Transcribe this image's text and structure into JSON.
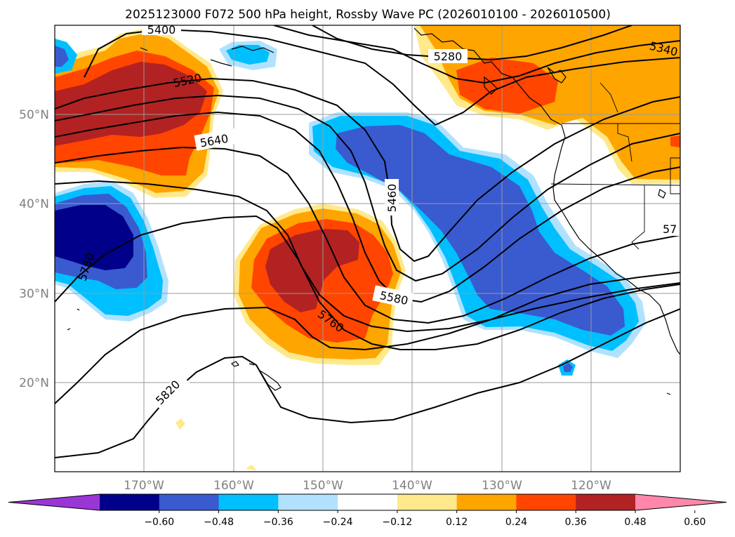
{
  "title": "2025123000 F072 500 hPa height, Rossby Wave PC (2026010100 - 2026010500)",
  "map": {
    "lat_labels": [
      "50°N",
      "40°N",
      "30°N",
      "20°N"
    ],
    "lon_labels": [
      "170°W",
      "160°W",
      "150°W",
      "140°W",
      "130°W",
      "120°W"
    ],
    "contour_labels": [
      "5400",
      "5520",
      "5640",
      "5760",
      "5280",
      "5340",
      "5460",
      "5580",
      "5760",
      "5820",
      "57"
    ]
  },
  "colorbar": {
    "ticks": [
      "−0.60",
      "−0.48",
      "−0.36",
      "−0.24",
      "−0.12",
      "0.12",
      "0.24",
      "0.36",
      "0.48",
      "0.60"
    ],
    "colors": [
      "#9b36d6",
      "#00008a",
      "#3a5ad0",
      "#00bfff",
      "#b0e2ff",
      "#ffffff",
      "#ffe98a",
      "#ffa500",
      "#ff4500",
      "#b22222",
      "#ff88aa"
    ]
  },
  "shading_colors": {
    "pos1": "#ffe98a",
    "pos2": "#ffa500",
    "pos3": "#ff4500",
    "pos4": "#b22222",
    "neg1": "#b0e2ff",
    "neg2": "#00bfff",
    "neg3": "#3a5ad0",
    "neg4": "#00008a"
  }
}
